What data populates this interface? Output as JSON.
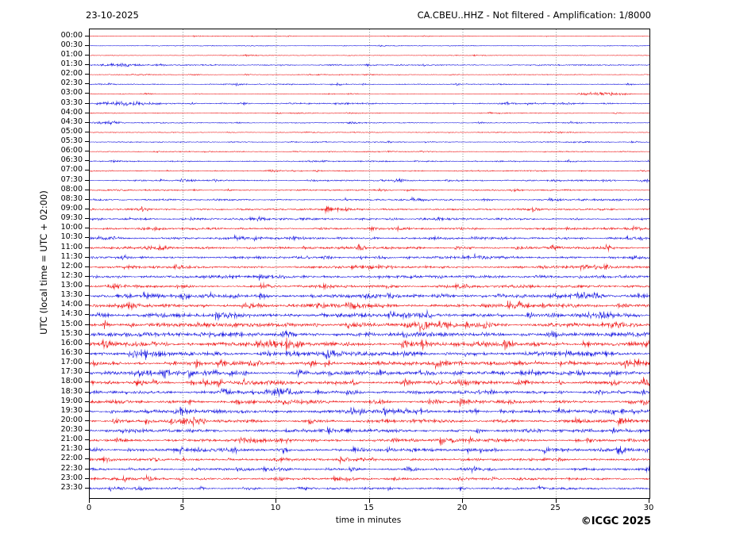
{
  "header": {
    "date_label": "23-10-2025",
    "station_label": "CA.CBEU..HHZ - Not filtered - Amplification: 1/8000"
  },
  "footer": {
    "credit": "©ICGC 2025"
  },
  "chart_data": {
    "type": "line",
    "subtype": "helicorder-seismogram",
    "title": "CA.CBEU..HHZ - Not filtered - Amplification: 1/8000",
    "date": "23-10-2025",
    "xlabel": "time in minutes",
    "ylabel": "UTC (local time = UTC + 02:00)",
    "x_range": [
      0,
      30
    ],
    "x_ticks": [
      0,
      5,
      10,
      15,
      20,
      25,
      30
    ],
    "grid_minutes": [
      5,
      10,
      15,
      20,
      25
    ],
    "grid_style": "vertical-dotted",
    "minutes_per_row": 30,
    "colors": {
      "red_trace": "#ee0000",
      "blue_trace": "#0000dd",
      "grid": "#777777",
      "frame": "#000000",
      "text": "#000000"
    },
    "rows": [
      {
        "label": "00:00",
        "color": "red",
        "amp": 0.4
      },
      {
        "label": "00:30",
        "color": "blue",
        "amp": 0.45
      },
      {
        "label": "01:00",
        "color": "red",
        "amp": 0.4
      },
      {
        "label": "01:30",
        "color": "blue",
        "amp": 0.7
      },
      {
        "label": "02:00",
        "color": "red",
        "amp": 0.45
      },
      {
        "label": "02:30",
        "color": "blue",
        "amp": 0.65
      },
      {
        "label": "03:00",
        "color": "red",
        "amp": 0.4
      },
      {
        "label": "03:30",
        "color": "blue",
        "amp": 0.8
      },
      {
        "label": "04:00",
        "color": "red",
        "amp": 0.5
      },
      {
        "label": "04:30",
        "color": "blue",
        "amp": 0.6
      },
      {
        "label": "05:00",
        "color": "red",
        "amp": 0.5
      },
      {
        "label": "05:30",
        "color": "blue",
        "amp": 0.6
      },
      {
        "label": "06:00",
        "color": "red",
        "amp": 0.55
      },
      {
        "label": "06:30",
        "color": "blue",
        "amp": 0.7
      },
      {
        "label": "07:00",
        "color": "red",
        "amp": 0.7
      },
      {
        "label": "07:30",
        "color": "blue",
        "amp": 0.9
      },
      {
        "label": "08:00",
        "color": "red",
        "amp": 0.8
      },
      {
        "label": "08:30",
        "color": "blue",
        "amp": 1.0
      },
      {
        "label": "09:00",
        "color": "red",
        "amp": 1.1
      },
      {
        "label": "09:30",
        "color": "blue",
        "amp": 1.2
      },
      {
        "label": "10:00",
        "color": "red",
        "amp": 1.2
      },
      {
        "label": "10:30",
        "color": "blue",
        "amp": 1.4
      },
      {
        "label": "11:00",
        "color": "red",
        "amp": 1.4
      },
      {
        "label": "11:30",
        "color": "blue",
        "amp": 1.5
      },
      {
        "label": "12:00",
        "color": "red",
        "amp": 1.5
      },
      {
        "label": "12:30",
        "color": "blue",
        "amp": 1.6
      },
      {
        "label": "13:00",
        "color": "red",
        "amp": 1.6
      },
      {
        "label": "13:30",
        "color": "blue",
        "amp": 2.0
      },
      {
        "label": "14:00",
        "color": "red",
        "amp": 2.1
      },
      {
        "label": "14:30",
        "color": "blue",
        "amp": 2.2
      },
      {
        "label": "15:00",
        "color": "red",
        "amp": 2.3
      },
      {
        "label": "15:30",
        "color": "blue",
        "amp": 2.3
      },
      {
        "label": "16:00",
        "color": "red",
        "amp": 2.5
      },
      {
        "label": "16:30",
        "color": "blue",
        "amp": 2.4
      },
      {
        "label": "17:00",
        "color": "red",
        "amp": 2.3
      },
      {
        "label": "17:30",
        "color": "blue",
        "amp": 2.2
      },
      {
        "label": "18:00",
        "color": "red",
        "amp": 2.2
      },
      {
        "label": "18:30",
        "color": "blue",
        "amp": 2.1
      },
      {
        "label": "19:00",
        "color": "red",
        "amp": 2.0
      },
      {
        "label": "19:30",
        "color": "blue",
        "amp": 2.0
      },
      {
        "label": "20:00",
        "color": "red",
        "amp": 1.8
      },
      {
        "label": "20:30",
        "color": "blue",
        "amp": 1.8
      },
      {
        "label": "21:00",
        "color": "red",
        "amp": 1.7
      },
      {
        "label": "21:30",
        "color": "blue",
        "amp": 1.8
      },
      {
        "label": "22:00",
        "color": "red",
        "amp": 1.5
      },
      {
        "label": "22:30",
        "color": "blue",
        "amp": 1.5
      },
      {
        "label": "23:00",
        "color": "red",
        "amp": 1.4
      },
      {
        "label": "23:30",
        "color": "blue",
        "amp": 1.2
      }
    ],
    "events": [
      {
        "row": "01:30",
        "start_min": 0,
        "end_min": 3,
        "amp": 0.9
      },
      {
        "row": "03:30",
        "start_min": 0,
        "end_min": 4,
        "amp": 1.1
      },
      {
        "row": "03:00",
        "start_min": 25.5,
        "end_min": 29.5,
        "amp": 1.0
      },
      {
        "row": "04:30",
        "start_min": 0,
        "end_min": 2,
        "amp": 0.8
      }
    ]
  }
}
